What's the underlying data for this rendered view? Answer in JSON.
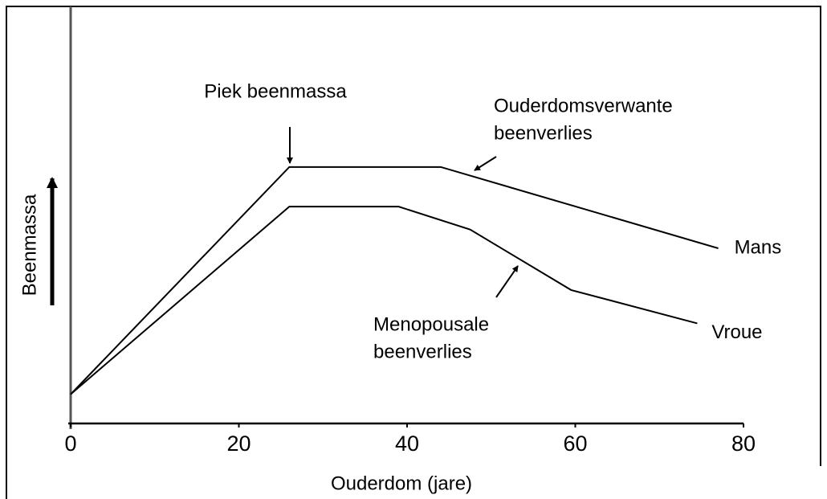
{
  "chart_data": {
    "type": "line",
    "xlabel": "Ouderdom (jare)",
    "ylabel": "Beenmassa",
    "xlim": [
      0,
      80
    ],
    "xticks": [
      0,
      20,
      40,
      60,
      80
    ],
    "ylim": [
      0,
      100
    ],
    "series": [
      {
        "name": "Mans",
        "color": "#000000",
        "x": [
          0,
          26,
          44,
          77
        ],
        "values": [
          7,
          61.5,
          61.5,
          42
        ]
      },
      {
        "name": "Vroue",
        "color": "#000000",
        "x": [
          0,
          26,
          39,
          47.5,
          59.5,
          74.5
        ],
        "values": [
          7,
          52,
          52,
          46.5,
          32,
          24
        ]
      }
    ],
    "annotations": [
      {
        "lines": [
          "Piek beenmassa"
        ]
      },
      {
        "lines": [
          "Ouderdomsverwante",
          "beenverlies"
        ]
      },
      {
        "lines": [
          "Menopousale",
          "beenverlies"
        ]
      }
    ]
  }
}
